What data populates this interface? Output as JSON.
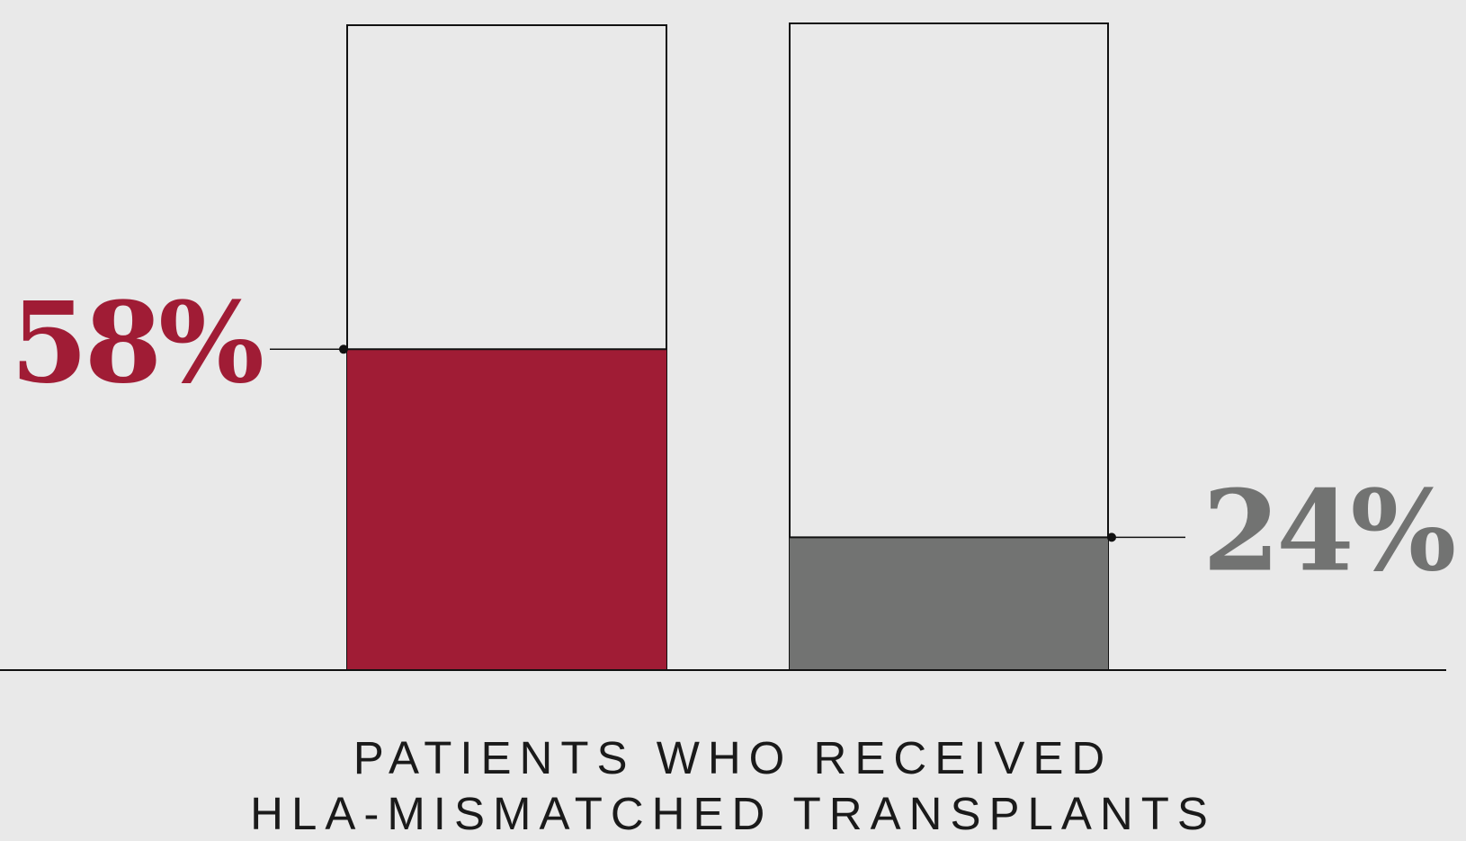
{
  "chart_data": {
    "type": "bar",
    "ylim": [
      0,
      100
    ],
    "bars": [
      {
        "value": 58,
        "label": "58%",
        "color": "#a01c35"
      },
      {
        "value": 24,
        "label": "24%",
        "color": "#727372"
      }
    ],
    "caption": [
      "PATIENTS WHO RECEIVED",
      "HLA-MISMATCHED TRANSPLANTS"
    ],
    "grid": false
  },
  "colors": {
    "background": "#e9e9e9",
    "outline": "#111111",
    "caption": "#1a1a1a"
  }
}
